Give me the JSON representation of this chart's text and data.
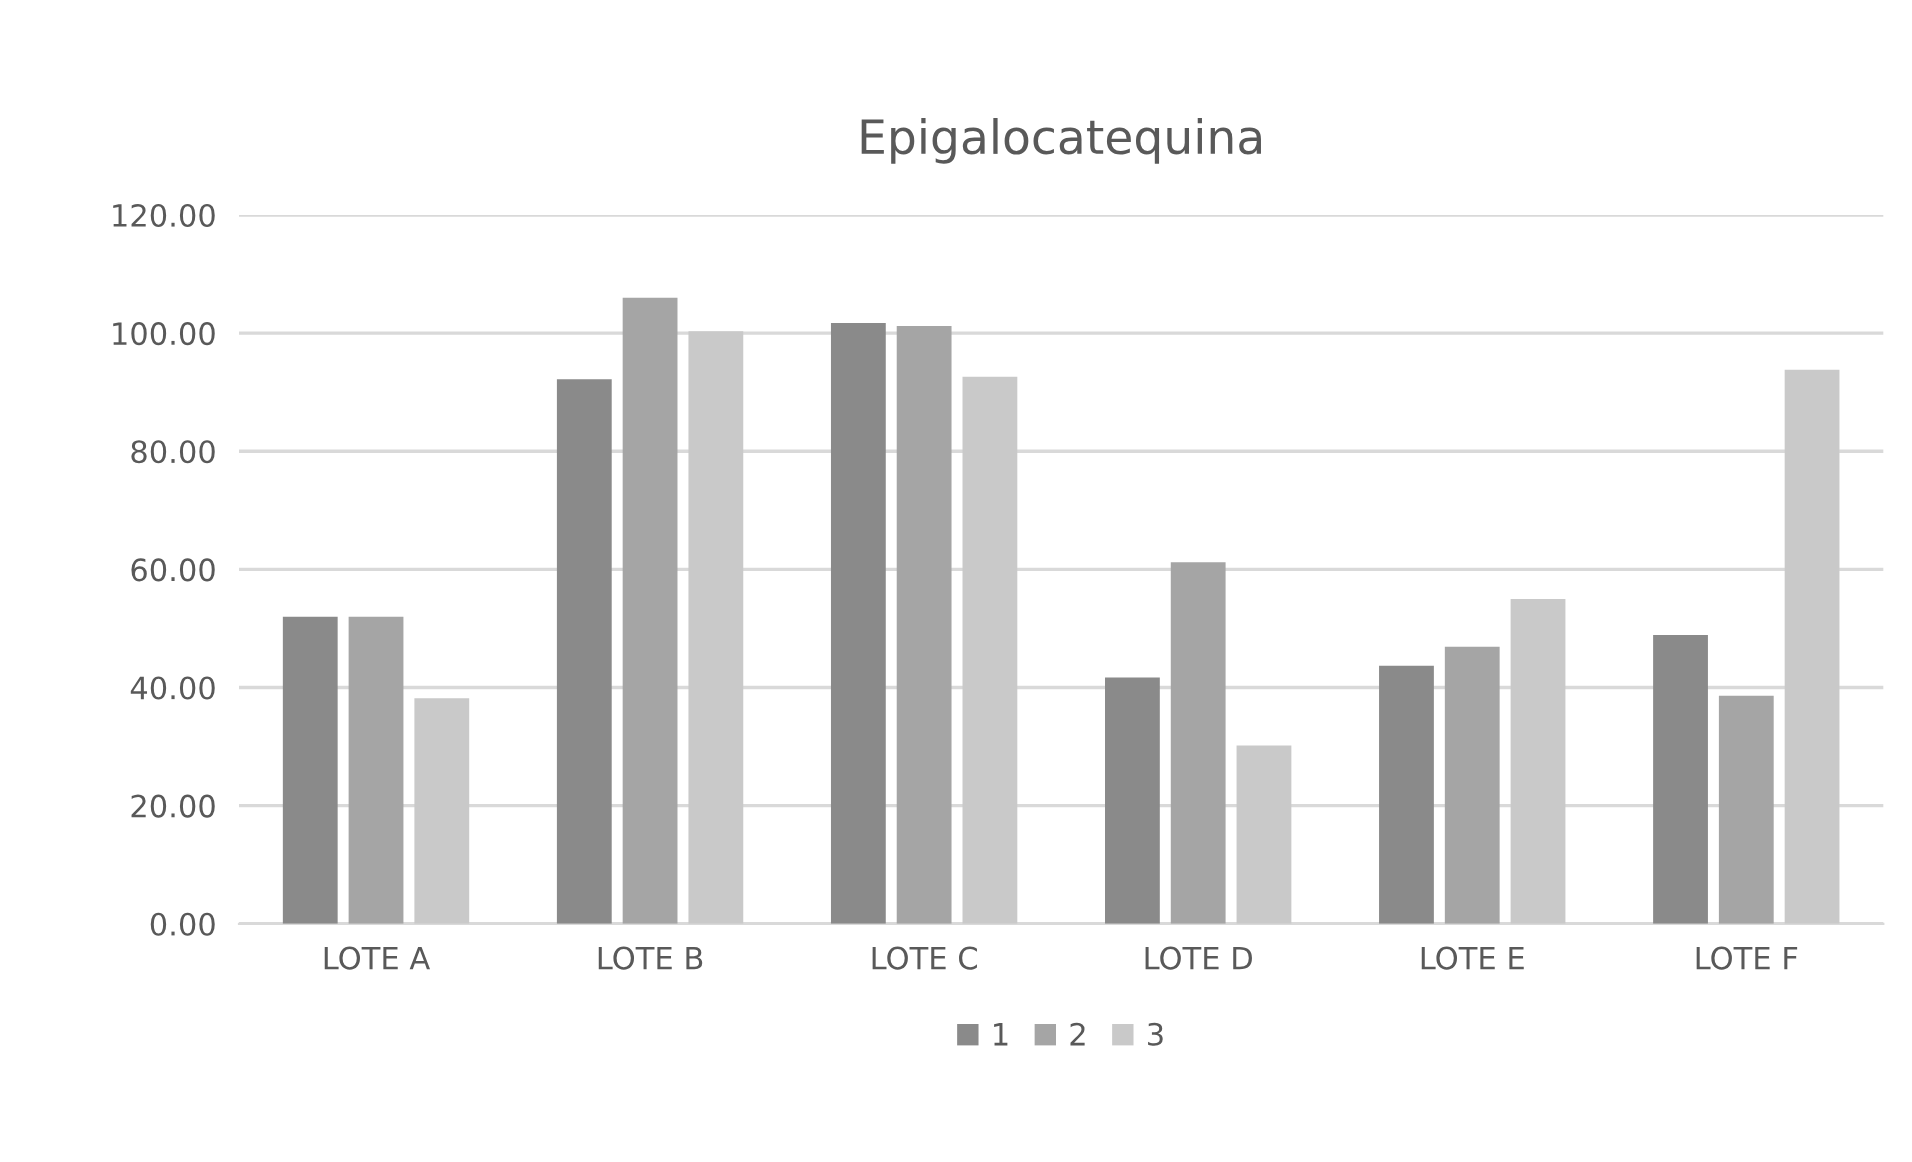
{
  "chart_data": {
    "type": "bar",
    "title": "Epigalocatequina",
    "categories": [
      "LOTE A",
      "LOTE B",
      "LOTE C",
      "LOTE D",
      "LOTE E",
      "LOTE F"
    ],
    "series": [
      {
        "name": "1",
        "color": "#8a8a8a",
        "values": [
          52.0,
          92.2,
          101.7,
          41.7,
          43.7,
          48.9
        ]
      },
      {
        "name": "2",
        "color": "#a5a5a5",
        "values": [
          52.0,
          106.0,
          101.2,
          61.2,
          46.9,
          38.6
        ]
      },
      {
        "name": "3",
        "color": "#c9c9c9",
        "values": [
          38.2,
          100.3,
          92.6,
          30.2,
          55.0,
          93.8
        ]
      }
    ],
    "ylim": [
      0,
      120
    ],
    "yticks": [
      {
        "value": 0,
        "label": "0.00"
      },
      {
        "value": 20,
        "label": "20.00"
      },
      {
        "value": 40,
        "label": "40.00"
      },
      {
        "value": 60,
        "label": "60.00"
      },
      {
        "value": 80,
        "label": "80.00"
      },
      {
        "value": 100,
        "label": "100.00"
      },
      {
        "value": 120,
        "label": "120.00"
      }
    ],
    "grid": "y",
    "legend": "bottom"
  }
}
